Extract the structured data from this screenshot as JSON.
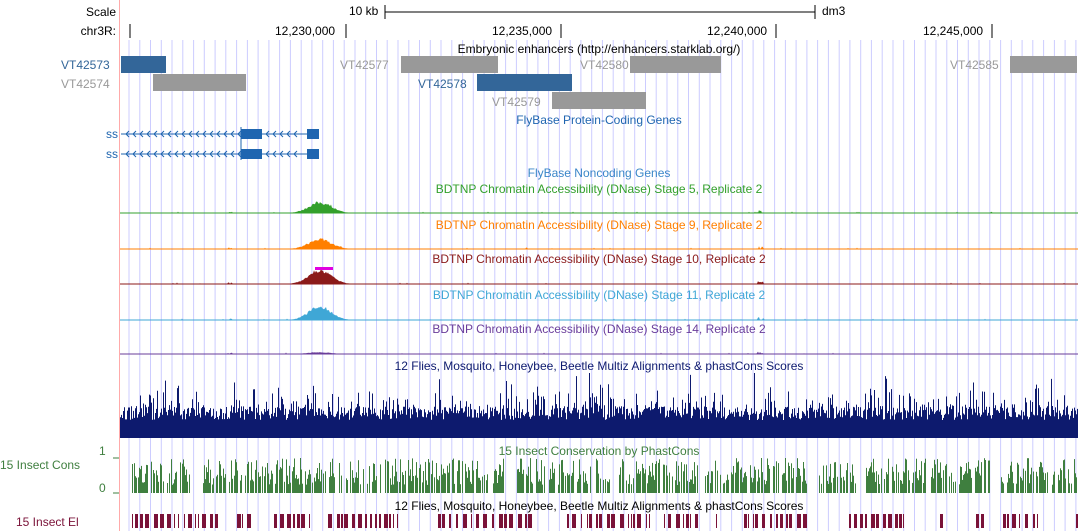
{
  "header": {
    "scale_label": "Scale",
    "chrom_label": "chr3R:",
    "scale_bar_label": "10 kb",
    "assembly": "dm3",
    "positions": [
      "12,230,000",
      "12,235,000",
      "12,240,000",
      "12,245,000"
    ]
  },
  "tracks": {
    "enhancers": {
      "title": "Embryonic enhancers (http://enhancers.starklab.org/)",
      "items": [
        {
          "name": "VT42573",
          "color": "#336699"
        },
        {
          "name": "VT42574",
          "color": "#999999"
        },
        {
          "name": "VT42577",
          "color": "#999999"
        },
        {
          "name": "VT42578",
          "color": "#336699"
        },
        {
          "name": "VT42579",
          "color": "#999999"
        },
        {
          "name": "VT42580",
          "color": "#999999"
        },
        {
          "name": "VT42585",
          "color": "#999999"
        }
      ]
    },
    "protein_genes": {
      "title": "FlyBase Protein-Coding Genes",
      "color": "#1f65b0",
      "genes": [
        "ss",
        "ss"
      ]
    },
    "noncoding": {
      "title": "FlyBase Noncoding Genes",
      "color": "#3a86c8"
    },
    "dnase": [
      {
        "title": "BDTNP Chromatin Accessibility (DNase) Stage 5, Replicate 2",
        "color": "#33a02c"
      },
      {
        "title": "BDTNP Chromatin Accessibility (DNase) Stage 9, Replicate 2",
        "color": "#ff7f00"
      },
      {
        "title": "BDTNP Chromatin Accessibility (DNase) Stage 10, Replicate 2",
        "color": "#8b1a1a"
      },
      {
        "title": "BDTNP Chromatin Accessibility (DNase) Stage 11, Replicate 2",
        "color": "#3fa7d6"
      },
      {
        "title": "BDTNP Chromatin Accessibility (DNase) Stage 14, Replicate 2",
        "color": "#6a3d9a"
      }
    ],
    "multiz": {
      "title": "12 Flies, Mosquito, Honeybee, Beetle Multiz Alignments & phastCons Scores",
      "color": "#0d1a6e"
    },
    "phastcons": {
      "title": "15 Insect Conservation by PhastCons",
      "side_label": "15 Insect Cons",
      "scale_max": "1",
      "scale_min": "0",
      "color": "#3f7f3f"
    },
    "elements": {
      "title": "12 Flies, Mosquito, Honeybee, Beetle Multiz Alignments & phastCons Scores",
      "side_label": "15 Insect El",
      "color": "#7a1238"
    }
  },
  "colors": {
    "gridline": "#ccccff",
    "left_border": "#ffaaaa",
    "baseline": "#000000"
  }
}
